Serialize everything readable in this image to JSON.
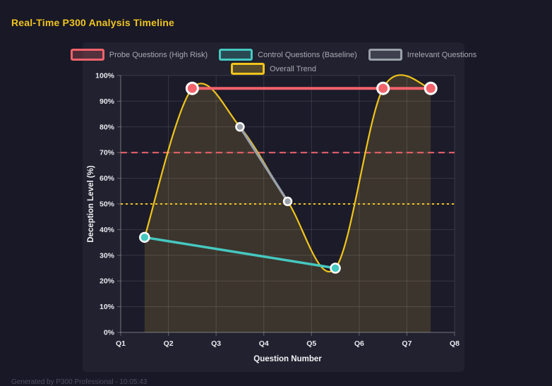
{
  "page": {
    "title": "Real-Time P300 Analysis Timeline",
    "footer": "Generated by P300 Professional - 10:05:43"
  },
  "colors": {
    "background": "#181826",
    "panel": "#21212f",
    "plot_background": "#1b1b2a",
    "grid": "rgba(255,255,255,0.12)",
    "axis_line": "rgba(255,255,255,0.30)",
    "title_text": "#f0c420",
    "tick_text": "#e9e9ef",
    "axis_title_text": "#f2f2f6",
    "legend_text": "#a9aab3",
    "point_border": "#ffffff"
  },
  "chart_data": {
    "type": "line",
    "title": "Real-Time P300 Analysis Timeline",
    "xlabel": "Question Number",
    "ylabel": "Deception Level (%)",
    "x_ticks": [
      "Q1",
      "Q2",
      "Q3",
      "Q4",
      "Q5",
      "Q6",
      "Q7",
      "Q8"
    ],
    "x_tick_values": [
      1,
      2,
      3,
      4,
      5,
      6,
      7,
      8
    ],
    "x_range": [
      1,
      8
    ],
    "ylim": [
      0,
      100
    ],
    "y_tick_step": 10,
    "y_tick_suffix": "%",
    "grid": true,
    "legend_position": "top",
    "legend_rows": [
      [
        0,
        1,
        2
      ],
      [
        3
      ]
    ],
    "series": [
      {
        "name": "Probe Questions (High Risk)",
        "color": "#f2636c",
        "x": [
          2.5,
          6.5,
          7.5
        ],
        "y": [
          95,
          95,
          95
        ],
        "line_width": 4,
        "point_radius": 8,
        "point_border_width": 3,
        "smooth": false
      },
      {
        "name": "Control Questions (Baseline)",
        "color": "#45c8c0",
        "x": [
          1.5,
          5.5
        ],
        "y": [
          37,
          25
        ],
        "line_width": 3.5,
        "point_radius": 6.5,
        "point_border_width": 2.5,
        "smooth": false
      },
      {
        "name": "Irrelevant Questions",
        "color": "#9aa0a8",
        "x": [
          3.5,
          4.5
        ],
        "y": [
          80,
          51
        ],
        "line_width": 3.5,
        "point_radius": 5.5,
        "point_border_width": 2.5,
        "smooth": false
      },
      {
        "name": "Overall Trend",
        "color": "#f0c41b",
        "x": [
          1.5,
          2.5,
          3.5,
          4.5,
          5.5,
          6.5,
          7.5
        ],
        "y": [
          37,
          95,
          80,
          51,
          25,
          95,
          95
        ],
        "line_width": 2.2,
        "point_radius": 0,
        "point_border_width": 0,
        "smooth": true,
        "fill_color": "rgba(235, 195, 60, 0.16)"
      }
    ],
    "threshold_lines": [
      {
        "name": "high-risk-threshold",
        "y": 70,
        "color": "#f2636c",
        "dash": "9 6",
        "width": 2
      },
      {
        "name": "baseline-threshold",
        "y": 50,
        "color": "#f0c41b",
        "dash": "3 4",
        "width": 2
      }
    ]
  }
}
